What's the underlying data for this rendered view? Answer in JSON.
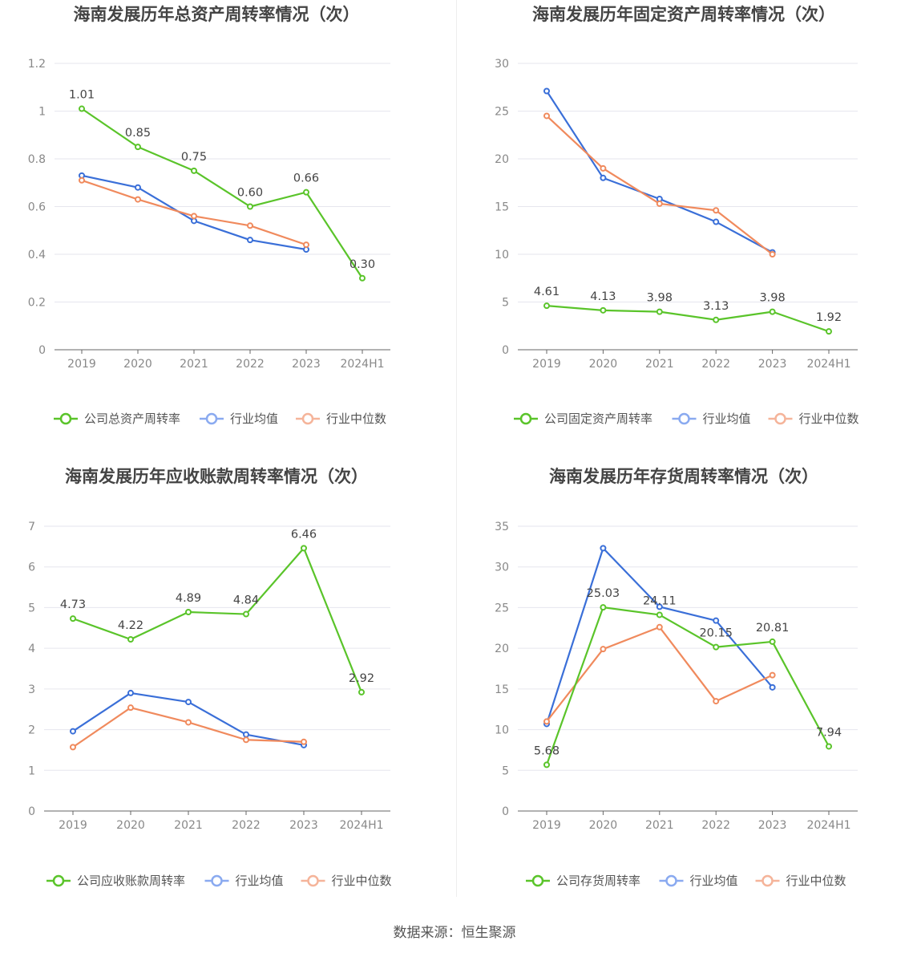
{
  "source": "数据来源：恒生聚源",
  "colors": {
    "company": "#5ac42a",
    "avg": "#3a6fd8",
    "median": "#f08a5d",
    "legend_avg": "#8aaaf0",
    "legend_median": "#f5b49a"
  },
  "chart_data": [
    {
      "type": "line",
      "title": "海南发展历年总资产周转率情况（次）",
      "categories": [
        "2019",
        "2020",
        "2021",
        "2022",
        "2023",
        "2024H1"
      ],
      "ylim": [
        0,
        1.2
      ],
      "yticks": [
        "0",
        "0.2",
        "0.4",
        "0.6",
        "0.8",
        "1",
        "1.2"
      ],
      "series": [
        {
          "name": "公司总资产周转率",
          "values": [
            1.01,
            0.85,
            0.75,
            0.6,
            0.66,
            0.3
          ],
          "labels": [
            "1.01",
            "0.85",
            "0.75",
            "0.60",
            "0.66",
            "0.30"
          ]
        },
        {
          "name": "行业均值",
          "values": [
            0.73,
            0.68,
            0.54,
            0.46,
            0.42,
            null
          ]
        },
        {
          "name": "行业中位数",
          "values": [
            0.71,
            0.63,
            0.56,
            0.52,
            0.44,
            null
          ]
        }
      ],
      "legend": "bottom"
    },
    {
      "type": "line",
      "title": "海南发展历年固定资产周转率情况（次）",
      "categories": [
        "2019",
        "2020",
        "2021",
        "2022",
        "2023",
        "2024H1"
      ],
      "ylim": [
        0,
        30
      ],
      "yticks": [
        "0",
        "5",
        "10",
        "15",
        "20",
        "25",
        "30"
      ],
      "series": [
        {
          "name": "公司固定资产周转率",
          "values": [
            4.61,
            4.13,
            3.98,
            3.13,
            3.98,
            1.92
          ],
          "labels": [
            "4.61",
            "4.13",
            "3.98",
            "3.13",
            "3.98",
            "1.92"
          ]
        },
        {
          "name": "行业均值",
          "values": [
            27.1,
            18.0,
            15.8,
            13.4,
            10.2,
            null
          ]
        },
        {
          "name": "行业中位数",
          "values": [
            24.5,
            19.0,
            15.3,
            14.6,
            10.0,
            null
          ]
        }
      ],
      "legend": "bottom"
    },
    {
      "type": "line",
      "title": "海南发展历年应收账款周转率情况（次）",
      "categories": [
        "2019",
        "2020",
        "2021",
        "2022",
        "2023",
        "2024H1"
      ],
      "ylim": [
        0,
        7
      ],
      "yticks": [
        "0",
        "1",
        "2",
        "3",
        "4",
        "5",
        "6",
        "7"
      ],
      "series": [
        {
          "name": "公司应收账款周转率",
          "values": [
            4.73,
            4.22,
            4.89,
            4.84,
            6.46,
            2.92
          ],
          "labels": [
            "4.73",
            "4.22",
            "4.89",
            "4.84",
            "6.46",
            "2.92"
          ]
        },
        {
          "name": "行业均值",
          "values": [
            1.96,
            2.9,
            2.68,
            1.88,
            1.62,
            null
          ]
        },
        {
          "name": "行业中位数",
          "values": [
            1.57,
            2.54,
            2.18,
            1.75,
            1.7,
            null
          ]
        }
      ],
      "legend": "bottom"
    },
    {
      "type": "line",
      "title": "海南发展历年存货周转率情况（次）",
      "categories": [
        "2019",
        "2020",
        "2021",
        "2022",
        "2023",
        "2024H1"
      ],
      "ylim": [
        0,
        35
      ],
      "yticks": [
        "0",
        "5",
        "10",
        "15",
        "20",
        "25",
        "30",
        "35"
      ],
      "series": [
        {
          "name": "公司存货周转率",
          "values": [
            5.68,
            25.03,
            24.11,
            20.15,
            20.81,
            7.94
          ],
          "labels": [
            "5.68",
            "25.03",
            "24.11",
            "20.15",
            "20.81",
            "7.94"
          ]
        },
        {
          "name": "行业均值",
          "values": [
            10.7,
            32.3,
            25.1,
            23.4,
            15.2,
            null
          ]
        },
        {
          "name": "行业中位数",
          "values": [
            11.0,
            19.9,
            22.6,
            13.5,
            16.7,
            null
          ]
        }
      ],
      "legend": "bottom"
    }
  ]
}
